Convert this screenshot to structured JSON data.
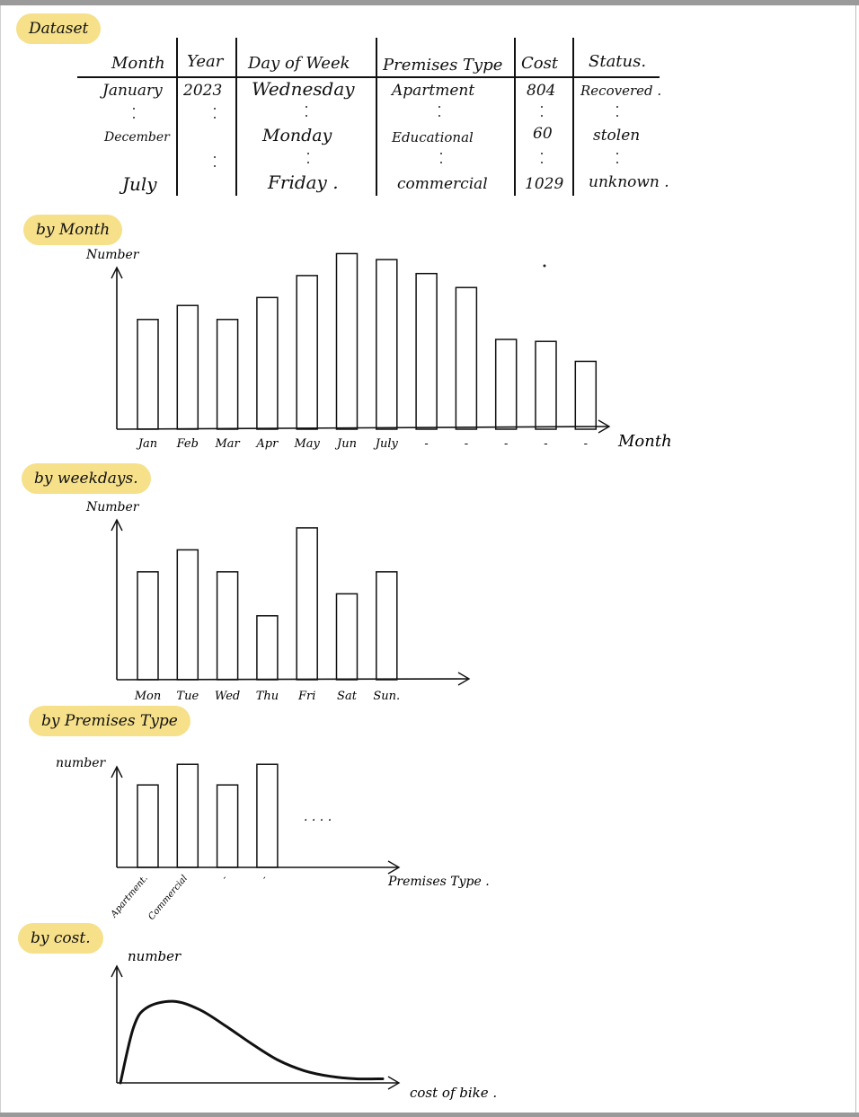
{
  "sections": {
    "dataset": "Dataset",
    "by_month": "by Month",
    "by_weekdays": "by weekdays.",
    "by_premises": "by Premises Type",
    "by_cost": "by cost."
  },
  "table": {
    "headers": [
      "Month",
      "Year",
      "Day of Week",
      "Premises Type",
      "Cost",
      "Status."
    ],
    "rows": [
      [
        "January",
        "2023",
        "Wednesday",
        "Apartment",
        "804",
        "Recovered ."
      ],
      [
        "December",
        "",
        "Monday",
        "Educational",
        "60",
        "stolen"
      ],
      [
        "July",
        "",
        "Friday .",
        "commercial",
        "1029",
        "unknown ."
      ]
    ]
  },
  "charts": {
    "month": {
      "ylabel": "Number",
      "xlabel": "Month"
    },
    "weekday": {
      "ylabel": "Number"
    },
    "premises": {
      "ylabel": "number",
      "xlabel": "Premises Type .",
      "ellipsis": ". . . ."
    },
    "cost": {
      "ylabel": "number",
      "xlabel": "cost of bike ."
    }
  },
  "chart_data": [
    {
      "type": "bar",
      "categories": [
        "Jan",
        "Feb",
        "Mar",
        "Apr",
        "May",
        "Jun",
        "July",
        "-",
        "-",
        "-",
        "-",
        "-"
      ],
      "values": [
        110,
        124,
        110,
        132,
        154,
        176,
        170,
        156,
        142,
        90,
        88,
        68
      ],
      "title": "by Month",
      "xlabel": "Month",
      "ylabel": "Number",
      "ylim": [
        0,
        180
      ]
    },
    {
      "type": "bar",
      "categories": [
        "Mon",
        "Tue",
        "Wed",
        "Thu",
        "Fri",
        "Sat",
        "Sun."
      ],
      "values": [
        108,
        130,
        108,
        64,
        152,
        86,
        108
      ],
      "title": "by weekdays.",
      "xlabel": "",
      "ylabel": "Number",
      "ylim": [
        0,
        160
      ]
    },
    {
      "type": "bar",
      "categories": [
        "Apartment.",
        "Commercial",
        "-",
        "-"
      ],
      "values": [
        88,
        110,
        88,
        110
      ],
      "title": "by Premises Type",
      "xlabel": "Premises Type .",
      "ylabel": "number",
      "ylim": [
        0,
        115
      ]
    },
    {
      "type": "line",
      "x": [
        0,
        5,
        10,
        20,
        30,
        40,
        50,
        60,
        70,
        80,
        90,
        100
      ],
      "y": [
        0,
        68,
        92,
        100,
        90,
        70,
        48,
        28,
        15,
        8,
        5,
        5
      ],
      "title": "by cost.",
      "xlabel": "cost of bike .",
      "ylabel": "number",
      "ylim": [
        0,
        110
      ]
    }
  ]
}
